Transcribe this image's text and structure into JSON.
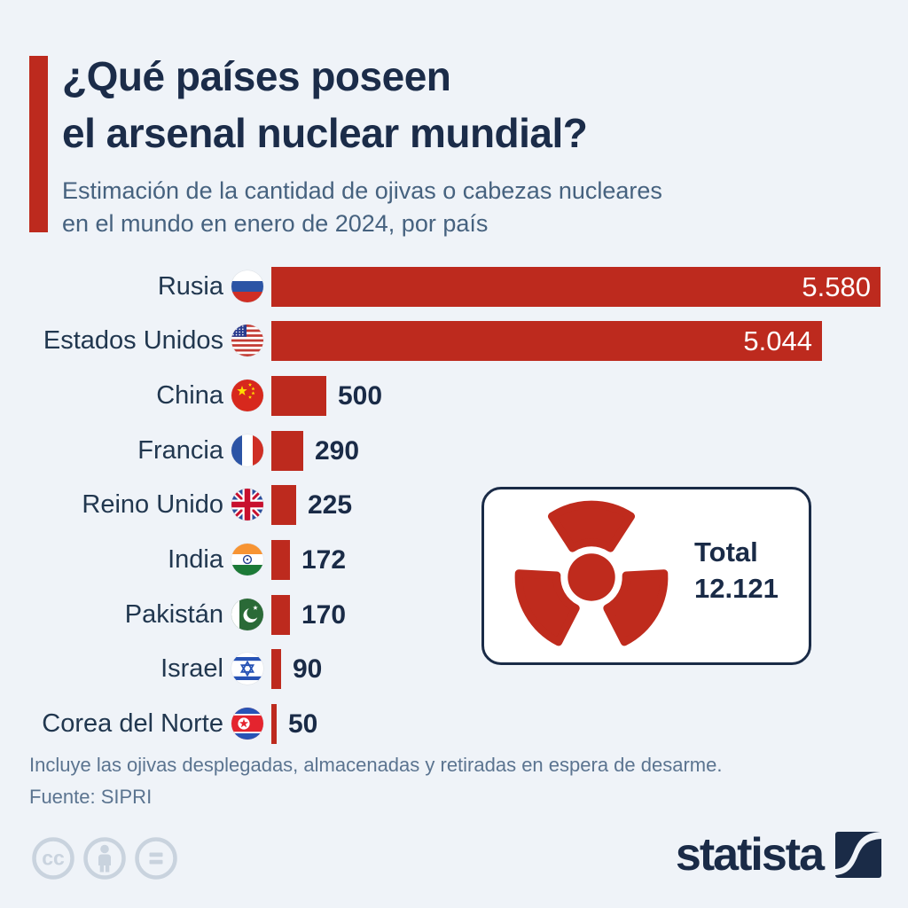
{
  "header": {
    "title_lines": [
      "¿Qué países poseen",
      "el arsenal nuclear mundial?"
    ],
    "subtitle_lines": [
      "Estimación de la cantidad de ojivas o cabezas nucleares",
      "en el mundo en enero de 2024, por país"
    ]
  },
  "chart_data": {
    "type": "bar",
    "orientation": "horizontal",
    "title": "¿Qué países poseen el arsenal nuclear mundial?",
    "subtitle": "Estimación de la cantidad de ojivas o cabezas nucleares en el mundo en enero de 2024, por país",
    "categories": [
      "Rusia",
      "Estados Unidos",
      "China",
      "Francia",
      "Reino Unido",
      "India",
      "Pakistán",
      "Israel",
      "Corea del Norte"
    ],
    "values": [
      5580,
      5044,
      500,
      290,
      225,
      172,
      170,
      90,
      50
    ],
    "value_labels": [
      "5.580",
      "5.044",
      "500",
      "290",
      "225",
      "172",
      "170",
      "90",
      "50"
    ],
    "flags": [
      "russia",
      "usa",
      "china",
      "france",
      "uk",
      "india",
      "pakistan",
      "israel",
      "north-korea"
    ],
    "xlim": [
      0,
      5580
    ],
    "grid": false,
    "legend": "none",
    "bar_color": "#bd2a1e",
    "total": {
      "label": "Total",
      "value": "12.121"
    }
  },
  "footer": {
    "note": "Incluye las ojivas desplegadas, almacenadas y retiradas en espera de desarme.",
    "source": "Fuente: SIPRI"
  },
  "branding": {
    "logo_text": "statista",
    "license_icons": [
      "cc",
      "attribution",
      "equals"
    ]
  },
  "colors": {
    "background": "#eff3f8",
    "bar_red": "#bd2a1e",
    "title_navy": "#1b2c49",
    "subtitle_slate": "#46627f",
    "footer_slate": "#5b7490",
    "license_gray": "#c9d3de"
  }
}
